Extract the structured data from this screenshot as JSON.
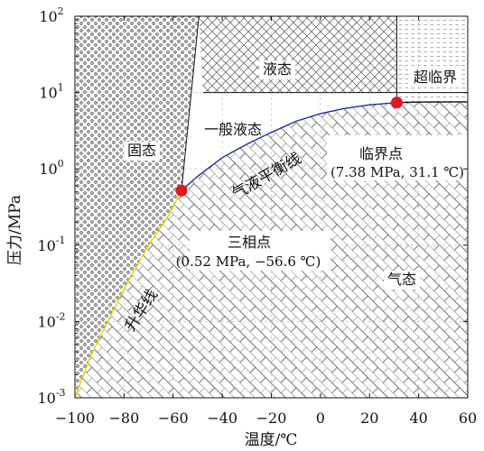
{
  "chart_data": {
    "type": "phase-diagram",
    "xlabel": "温度/℃",
    "ylabel": "压力/MPa",
    "xlim": [
      -100,
      60
    ],
    "ylim": [
      0.001,
      100
    ],
    "y_scale": "log",
    "x_ticks": [
      -100,
      -80,
      -60,
      -40,
      -20,
      0,
      20,
      40,
      60
    ],
    "y_tick_labels": [
      {
        "value": 0.001,
        "base": "10",
        "exp": "-3"
      },
      {
        "value": 0.01,
        "base": "10",
        "exp": "-2"
      },
      {
        "value": 0.1,
        "base": "10",
        "exp": "-1"
      },
      {
        "value": 1,
        "base": "10",
        "exp": "0"
      },
      {
        "value": 10,
        "base": "10",
        "exp": "1"
      },
      {
        "value": 100,
        "base": "10",
        "exp": "2"
      }
    ],
    "regions": {
      "solid": "固态",
      "liquid": "液态",
      "supercritical": "超临界",
      "general_liquid": "一般液态",
      "gas": "气态"
    },
    "curves": [
      {
        "name": "升华线",
        "color": "#e6d200",
        "points": [
          [
            -100,
            0.001
          ],
          [
            -94,
            0.0033
          ],
          [
            -86,
            0.011
          ],
          [
            -78,
            0.035
          ],
          [
            -70,
            0.1
          ],
          [
            -62,
            0.24
          ],
          [
            -56.6,
            0.52
          ]
        ]
      },
      {
        "name": "气液平衡线",
        "color": "#1f2d9e",
        "points": [
          [
            -56.6,
            0.52
          ],
          [
            -50,
            0.8
          ],
          [
            -40,
            1.4
          ],
          [
            -30,
            2.1
          ],
          [
            -20,
            3.0
          ],
          [
            -10,
            4.2
          ],
          [
            0,
            5.3
          ],
          [
            10,
            6.2
          ],
          [
            20,
            6.9
          ],
          [
            31.1,
            7.38
          ]
        ]
      },
      {
        "name": "",
        "color": "#111111",
        "points": [
          [
            31.1,
            7.38
          ],
          [
            40,
            7.5
          ],
          [
            60,
            7.55
          ]
        ]
      }
    ],
    "points": [
      {
        "label": "三相点",
        "value_text": "(0.52 MPa, −56.6 ℃)",
        "x": -56.6,
        "y": 0.52,
        "color": "#e8141e"
      },
      {
        "label": "临界点",
        "value_text": "(7.38 MPa, 31.1 ℃)",
        "x": 31.1,
        "y": 7.38,
        "color": "#e8141e"
      }
    ],
    "grid": true
  }
}
